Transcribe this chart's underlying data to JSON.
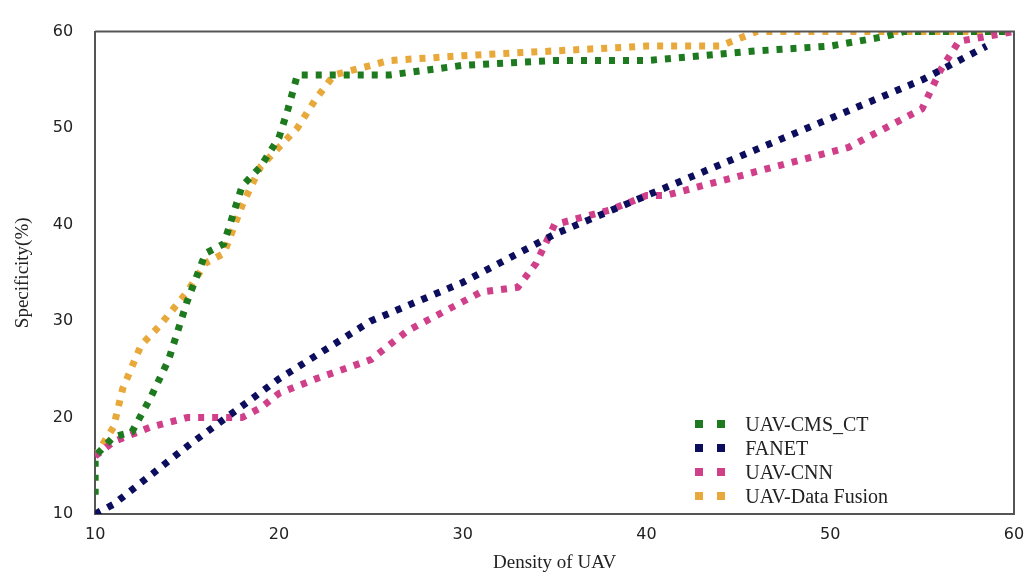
{
  "chart_data": {
    "type": "line",
    "xlabel": "Density of UAV",
    "ylabel": "Specificity(%)",
    "xlim": [
      10,
      60
    ],
    "xticks": [
      10,
      20,
      30,
      40,
      50,
      60
    ],
    "ylim": [
      10,
      60
    ],
    "yticks": [
      10,
      20,
      30,
      40,
      50,
      60
    ],
    "grid": false,
    "legend": "bottom right",
    "marker": "none",
    "line_style": "dotted",
    "series": [
      {
        "name": "UAV-CMS_CT",
        "color": "#1e7a1e",
        "x": [
          10,
          10,
          11,
          12,
          13,
          14,
          15,
          16,
          17,
          18,
          19,
          20,
          20.5,
          21,
          22,
          24,
          26,
          28,
          30,
          35,
          40,
          46,
          50,
          53,
          54,
          60
        ],
        "values": [
          12,
          16,
          18,
          18.5,
          22,
          26,
          32,
          37,
          38,
          44,
          46,
          49,
          52,
          55.5,
          55.5,
          55.5,
          55.5,
          56,
          56.5,
          57,
          57,
          58,
          58.5,
          59.5,
          60,
          60
        ]
      },
      {
        "name": "FANET",
        "color": "#0d0d5e",
        "x": [
          10,
          11,
          15,
          20,
          25,
          30,
          35,
          40,
          45,
          50,
          55,
          58.5
        ],
        "values": [
          10,
          11,
          17,
          24,
          30,
          34,
          39,
          43,
          47,
          51,
          55,
          58.5
        ]
      },
      {
        "name": "UAV-CNN",
        "color": "#d0408a",
        "x": [
          10,
          11,
          13,
          15,
          17,
          18,
          19,
          20,
          22,
          25,
          27,
          29,
          31,
          33,
          34,
          35,
          38,
          40,
          41,
          43,
          45,
          47,
          49,
          51,
          53,
          55,
          56,
          57,
          60
        ],
        "values": [
          16,
          17.5,
          19,
          20,
          20,
          20,
          21,
          22.5,
          24,
          26,
          29,
          31,
          33,
          33.5,
          36,
          40,
          41.5,
          43,
          43,
          44,
          45,
          46,
          47,
          48,
          50,
          52,
          56,
          59,
          60
        ]
      },
      {
        "name": "UAV-Data Fusion",
        "color": "#e8a83a",
        "x": [
          10,
          11,
          11.5,
          12.5,
          13.5,
          15,
          16,
          17,
          18,
          19,
          20,
          21,
          22,
          23,
          24,
          26,
          30,
          40,
          44,
          46,
          60
        ],
        "values": [
          16,
          19,
          23,
          27.5,
          29.5,
          33,
          36,
          37,
          42,
          46,
          48,
          50,
          53,
          55.5,
          56,
          57,
          57.5,
          58.5,
          58.5,
          60,
          60
        ]
      }
    ]
  }
}
